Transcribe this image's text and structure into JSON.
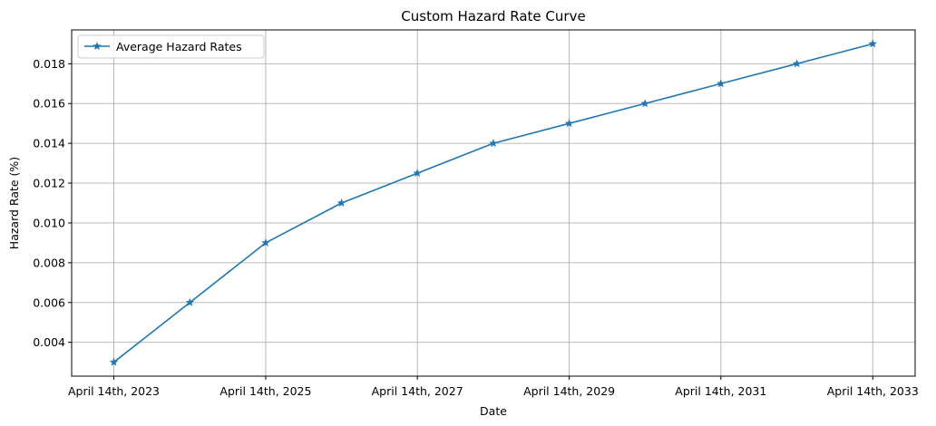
{
  "chart_data": {
    "type": "line",
    "title": "Custom Hazard Rate Curve",
    "xlabel": "Date",
    "ylabel": "Hazard Rate (%)",
    "x": [
      "2023-04-14",
      "2024-04-14",
      "2025-04-14",
      "2026-04-14",
      "2027-04-14",
      "2028-04-14",
      "2029-04-14",
      "2030-04-14",
      "2031-04-14",
      "2032-04-14",
      "2033-04-14"
    ],
    "x_tick_values": [
      "2023-04-14",
      "2025-04-14",
      "2027-04-14",
      "2029-04-14",
      "2031-04-14",
      "2033-04-14"
    ],
    "x_tick_labels": [
      "April 14th, 2023",
      "April 14th, 2025",
      "April 14th, 2027",
      "April 14th, 2029",
      "April 14th, 2031",
      "April 14th, 2033"
    ],
    "xlim": [
      "2022-09-23",
      "2033-11-04"
    ],
    "ylim": [
      0.0023,
      0.0197
    ],
    "y_ticks": [
      0.004,
      0.006,
      0.008,
      0.01,
      0.012,
      0.014,
      0.016,
      0.018
    ],
    "y_tick_labels": [
      "0.004",
      "0.006",
      "0.008",
      "0.010",
      "0.012",
      "0.014",
      "0.016",
      "0.018"
    ],
    "grid": true,
    "legend_position": "top-left",
    "series": [
      {
        "name": "Average Hazard Rates",
        "values": [
          0.003,
          0.006,
          0.009,
          0.011,
          0.0125,
          0.014,
          0.015,
          0.016,
          0.017,
          0.018,
          0.019
        ],
        "color": "#1f77b4",
        "marker": "star"
      }
    ]
  }
}
